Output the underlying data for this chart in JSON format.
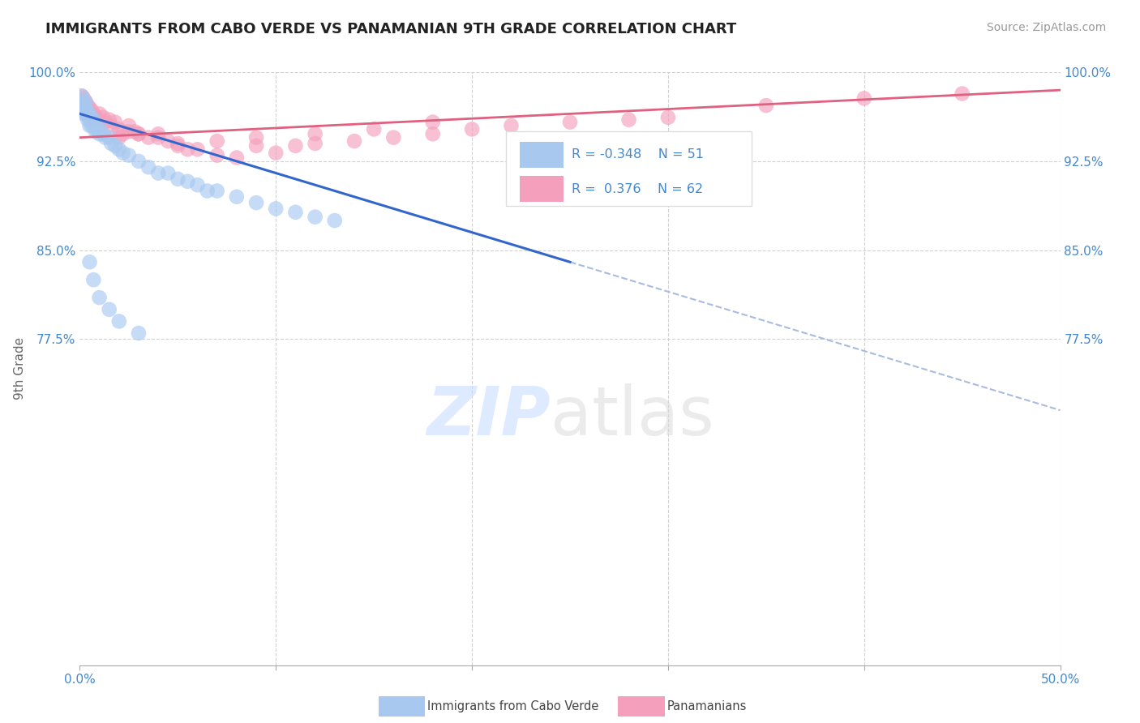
{
  "title": "IMMIGRANTS FROM CABO VERDE VS PANAMANIAN 9TH GRADE CORRELATION CHART",
  "source": "Source: ZipAtlas.com",
  "ylabel": "9th Grade",
  "xlim": [
    0.0,
    0.5
  ],
  "ylim": [
    0.5,
    1.0
  ],
  "xtick_positions": [
    0.0,
    0.1,
    0.2,
    0.3,
    0.4,
    0.5
  ],
  "xticklabels": [
    "0.0%",
    "",
    "",
    "",
    "",
    "50.0%"
  ],
  "ytick_positions": [
    0.775,
    0.85,
    0.925,
    1.0
  ],
  "yticklabels": [
    "77.5%",
    "85.0%",
    "92.5%",
    "100.0%"
  ],
  "R_blue": -0.348,
  "N_blue": 51,
  "R_pink": 0.376,
  "N_pink": 62,
  "blue_color": "#A8C8F0",
  "pink_color": "#F4A0BC",
  "bg_color": "#FFFFFF",
  "grid_color": "#CCCCCC",
  "title_color": "#222222",
  "axis_label_color": "#666666",
  "tick_label_color": "#4488CC",
  "trend_blue": "#3366CC",
  "trend_pink": "#E06080",
  "dashed_color": "#AABBDD",
  "cabo_verde_x": [
    0.001,
    0.001,
    0.002,
    0.002,
    0.002,
    0.003,
    0.003,
    0.003,
    0.004,
    0.004,
    0.005,
    0.005,
    0.005,
    0.006,
    0.006,
    0.007,
    0.007,
    0.008,
    0.008,
    0.009,
    0.01,
    0.01,
    0.012,
    0.013,
    0.015,
    0.016,
    0.018,
    0.02,
    0.022,
    0.025,
    0.03,
    0.035,
    0.04,
    0.045,
    0.05,
    0.055,
    0.06,
    0.065,
    0.07,
    0.08,
    0.09,
    0.1,
    0.11,
    0.12,
    0.13,
    0.005,
    0.007,
    0.01,
    0.015,
    0.02,
    0.03
  ],
  "cabo_verde_y": [
    0.98,
    0.975,
    0.975,
    0.97,
    0.965,
    0.975,
    0.97,
    0.965,
    0.965,
    0.96,
    0.965,
    0.96,
    0.955,
    0.96,
    0.955,
    0.96,
    0.955,
    0.955,
    0.95,
    0.95,
    0.955,
    0.948,
    0.948,
    0.945,
    0.945,
    0.94,
    0.938,
    0.935,
    0.932,
    0.93,
    0.925,
    0.92,
    0.915,
    0.915,
    0.91,
    0.908,
    0.905,
    0.9,
    0.9,
    0.895,
    0.89,
    0.885,
    0.882,
    0.878,
    0.875,
    0.84,
    0.825,
    0.81,
    0.8,
    0.79,
    0.78
  ],
  "pana_x": [
    0.001,
    0.001,
    0.002,
    0.002,
    0.003,
    0.003,
    0.003,
    0.004,
    0.004,
    0.005,
    0.005,
    0.006,
    0.006,
    0.007,
    0.007,
    0.008,
    0.009,
    0.01,
    0.01,
    0.012,
    0.013,
    0.015,
    0.016,
    0.018,
    0.02,
    0.022,
    0.025,
    0.028,
    0.03,
    0.035,
    0.04,
    0.045,
    0.05,
    0.055,
    0.06,
    0.07,
    0.08,
    0.09,
    0.1,
    0.11,
    0.12,
    0.14,
    0.16,
    0.18,
    0.2,
    0.22,
    0.25,
    0.28,
    0.3,
    0.02,
    0.025,
    0.03,
    0.04,
    0.05,
    0.07,
    0.09,
    0.12,
    0.15,
    0.18,
    0.35,
    0.4,
    0.45
  ],
  "pana_y": [
    0.98,
    0.975,
    0.978,
    0.972,
    0.975,
    0.97,
    0.965,
    0.972,
    0.968,
    0.97,
    0.965,
    0.968,
    0.963,
    0.965,
    0.96,
    0.963,
    0.96,
    0.965,
    0.958,
    0.962,
    0.958,
    0.96,
    0.955,
    0.958,
    0.952,
    0.948,
    0.955,
    0.95,
    0.948,
    0.945,
    0.948,
    0.942,
    0.938,
    0.935,
    0.935,
    0.93,
    0.928,
    0.938,
    0.932,
    0.938,
    0.94,
    0.942,
    0.945,
    0.948,
    0.952,
    0.955,
    0.958,
    0.96,
    0.962,
    0.945,
    0.95,
    0.948,
    0.945,
    0.94,
    0.942,
    0.945,
    0.948,
    0.952,
    0.958,
    0.972,
    0.978,
    0.982
  ],
  "blue_line_x": [
    0.0,
    0.25
  ],
  "blue_line_y": [
    0.965,
    0.84
  ],
  "dashed_line_x": [
    0.25,
    0.5
  ],
  "dashed_line_y": [
    0.84,
    0.715
  ],
  "pink_line_x": [
    0.0,
    0.5
  ],
  "pink_line_y": [
    0.945,
    0.985
  ]
}
